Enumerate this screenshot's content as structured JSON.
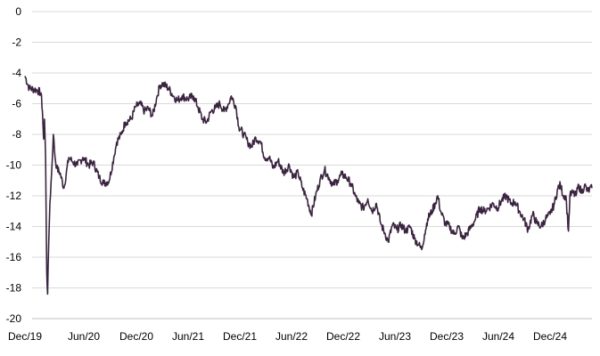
{
  "chart_data": {
    "type": "line",
    "title": "",
    "xlabel": "",
    "ylabel": "",
    "ylim": [
      -20,
      0
    ],
    "grid": true,
    "legend": "none",
    "y_ticks": [
      "0",
      "-2",
      "-4",
      "-6",
      "-8",
      "-10",
      "-12",
      "-14",
      "-16",
      "-18",
      "-20"
    ],
    "x_ticks": [
      "Dec/19",
      "Jun/20",
      "Dec/20",
      "Jun/21",
      "Dec/21",
      "Jun/22",
      "Dec/22",
      "Jun/23",
      "Dec/23",
      "Jun/24",
      "Dec/24"
    ],
    "x_range": [
      "2019-12-31",
      "2025-05-31"
    ],
    "series": [
      {
        "color": "#3b2441",
        "points": [
          [
            "2019-12-31",
            -4.2
          ],
          [
            "2020-01-15",
            -5.0
          ],
          [
            "2020-02-10",
            -5.1
          ],
          [
            "2020-02-25",
            -5.3
          ],
          [
            "2020-03-01",
            -6.5
          ],
          [
            "2020-03-05",
            -8.3
          ],
          [
            "2020-03-08",
            -7.0
          ],
          [
            "2020-03-12",
            -9.5
          ],
          [
            "2020-03-16",
            -17.0
          ],
          [
            "2020-03-19",
            -18.4
          ],
          [
            "2020-03-23",
            -15.0
          ],
          [
            "2020-03-27",
            -12.5
          ],
          [
            "2020-04-02",
            -10.5
          ],
          [
            "2020-04-08",
            -8.0
          ],
          [
            "2020-04-14",
            -9.5
          ],
          [
            "2020-04-20",
            -10.2
          ],
          [
            "2020-05-01",
            -10.5
          ],
          [
            "2020-05-15",
            -11.5
          ],
          [
            "2020-06-01",
            -9.5
          ],
          [
            "2020-06-15",
            -9.8
          ],
          [
            "2020-07-01",
            -10.0
          ],
          [
            "2020-07-20",
            -9.5
          ],
          [
            "2020-08-10",
            -10.0
          ],
          [
            "2020-08-25",
            -9.8
          ],
          [
            "2020-09-15",
            -10.8
          ],
          [
            "2020-10-01",
            -11.2
          ],
          [
            "2020-10-20",
            -11.0
          ],
          [
            "2020-11-05",
            -9.5
          ],
          [
            "2020-11-15",
            -8.5
          ],
          [
            "2020-12-01",
            -8.0
          ],
          [
            "2020-12-15",
            -7.2
          ],
          [
            "2021-01-05",
            -7.0
          ],
          [
            "2021-01-20",
            -6.2
          ],
          [
            "2021-02-05",
            -6.0
          ],
          [
            "2021-02-20",
            -6.5
          ],
          [
            "2021-03-05",
            -6.3
          ],
          [
            "2021-03-20",
            -6.8
          ],
          [
            "2021-04-05",
            -5.5
          ],
          [
            "2021-04-15",
            -4.8
          ],
          [
            "2021-04-25",
            -4.7
          ],
          [
            "2021-05-15",
            -5.0
          ],
          [
            "2021-06-01",
            -5.5
          ],
          [
            "2021-06-15",
            -5.8
          ],
          [
            "2021-07-01",
            -5.5
          ],
          [
            "2021-07-20",
            -5.7
          ],
          [
            "2021-08-10",
            -5.5
          ],
          [
            "2021-08-25",
            -6.2
          ],
          [
            "2021-09-10",
            -7.0
          ],
          [
            "2021-09-25",
            -7.2
          ],
          [
            "2021-10-10",
            -6.5
          ],
          [
            "2021-10-25",
            -6.3
          ],
          [
            "2021-11-10",
            -6.0
          ],
          [
            "2021-11-25",
            -6.5
          ],
          [
            "2021-12-10",
            -6.0
          ],
          [
            "2021-12-20",
            -5.5
          ],
          [
            "2022-01-05",
            -6.2
          ],
          [
            "2022-01-15",
            -7.5
          ],
          [
            "2022-02-01",
            -8.0
          ],
          [
            "2022-02-15",
            -8.5
          ],
          [
            "2022-03-01",
            -8.8
          ],
          [
            "2022-03-15",
            -8.2
          ],
          [
            "2022-04-01",
            -8.5
          ],
          [
            "2022-04-15",
            -9.5
          ],
          [
            "2022-05-01",
            -9.5
          ],
          [
            "2022-05-15",
            -10.2
          ],
          [
            "2022-06-01",
            -9.7
          ],
          [
            "2022-06-20",
            -10.5
          ],
          [
            "2022-07-10",
            -10.0
          ],
          [
            "2022-07-25",
            -10.8
          ],
          [
            "2022-08-10",
            -10.5
          ],
          [
            "2022-08-25",
            -11.5
          ],
          [
            "2022-09-10",
            -12.2
          ],
          [
            "2022-09-25",
            -13.2
          ],
          [
            "2022-10-10",
            -12.0
          ],
          [
            "2022-10-25",
            -11.0
          ],
          [
            "2022-11-10",
            -10.3
          ],
          [
            "2022-11-25",
            -10.8
          ],
          [
            "2022-12-10",
            -11.3
          ],
          [
            "2022-12-25",
            -11.0
          ],
          [
            "2023-01-10",
            -10.6
          ],
          [
            "2023-01-25",
            -10.8
          ],
          [
            "2023-02-10",
            -11.2
          ],
          [
            "2023-02-25",
            -12.0
          ],
          [
            "2023-03-10",
            -12.5
          ],
          [
            "2023-03-25",
            -12.8
          ],
          [
            "2023-04-10",
            -12.2
          ],
          [
            "2023-04-25",
            -13.0
          ],
          [
            "2023-05-10",
            -12.5
          ],
          [
            "2023-05-25",
            -13.8
          ],
          [
            "2023-06-10",
            -14.5
          ],
          [
            "2023-06-20",
            -15.0
          ],
          [
            "2023-07-05",
            -13.9
          ],
          [
            "2023-07-20",
            -14.2
          ],
          [
            "2023-08-05",
            -13.9
          ],
          [
            "2023-08-20",
            -14.3
          ],
          [
            "2023-09-05",
            -14.0
          ],
          [
            "2023-09-20",
            -14.8
          ],
          [
            "2023-10-05",
            -15.2
          ],
          [
            "2023-10-15",
            -15.5
          ],
          [
            "2023-10-25",
            -14.5
          ],
          [
            "2023-11-05",
            -13.5
          ],
          [
            "2023-11-20",
            -13.0
          ],
          [
            "2023-12-01",
            -12.5
          ],
          [
            "2023-12-10",
            -12.0
          ],
          [
            "2023-12-20",
            -13.0
          ],
          [
            "2024-01-05",
            -13.8
          ],
          [
            "2024-01-20",
            -14.0
          ],
          [
            "2024-02-05",
            -14.5
          ],
          [
            "2024-02-20",
            -14.0
          ],
          [
            "2024-03-05",
            -14.8
          ],
          [
            "2024-03-20",
            -14.5
          ],
          [
            "2024-04-05",
            -14.0
          ],
          [
            "2024-04-20",
            -13.5
          ],
          [
            "2024-05-05",
            -12.8
          ],
          [
            "2024-05-20",
            -13.0
          ],
          [
            "2024-06-05",
            -12.8
          ],
          [
            "2024-06-20",
            -12.5
          ],
          [
            "2024-07-05",
            -12.8
          ],
          [
            "2024-07-20",
            -12.3
          ],
          [
            "2024-08-05",
            -12.0
          ],
          [
            "2024-08-20",
            -12.5
          ],
          [
            "2024-09-05",
            -12.4
          ],
          [
            "2024-09-20",
            -13.0
          ],
          [
            "2024-10-05",
            -13.5
          ],
          [
            "2024-10-20",
            -14.2
          ],
          [
            "2024-11-05",
            -13.2
          ],
          [
            "2024-11-20",
            -13.8
          ],
          [
            "2024-12-05",
            -14.0
          ],
          [
            "2024-12-20",
            -13.5
          ],
          [
            "2025-01-05",
            -13.2
          ],
          [
            "2025-01-20",
            -12.5
          ],
          [
            "2025-02-01",
            -11.5
          ],
          [
            "2025-02-10",
            -11.3
          ],
          [
            "2025-02-20",
            -12.0
          ],
          [
            "2025-03-01",
            -12.0
          ],
          [
            "2025-03-10",
            -14.3
          ],
          [
            "2025-03-15",
            -12.0
          ],
          [
            "2025-03-25",
            -11.8
          ],
          [
            "2025-04-05",
            -12.0
          ],
          [
            "2025-04-15",
            -11.3
          ],
          [
            "2025-04-25",
            -11.8
          ],
          [
            "2025-05-05",
            -11.3
          ],
          [
            "2025-05-15",
            -11.7
          ],
          [
            "2025-05-31",
            -11.5
          ]
        ]
      }
    ]
  }
}
